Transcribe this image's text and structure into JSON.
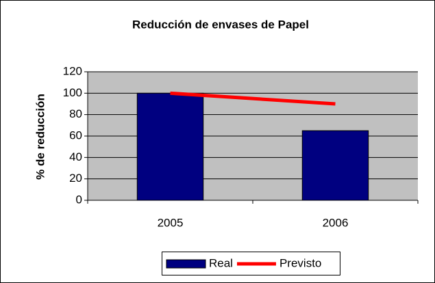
{
  "chart_data": {
    "type": "bar",
    "title": "Reducción de envases de Papel",
    "y_label": "% de reducción",
    "categories": [
      "2005",
      "2006"
    ],
    "series": [
      {
        "name": "Real",
        "type": "bar",
        "color": "#000080",
        "values": [
          100,
          65
        ]
      },
      {
        "name": "Previsto",
        "type": "line",
        "color": "#ff0000",
        "values": [
          100,
          90
        ]
      }
    ],
    "ylim": [
      0,
      120
    ],
    "yticks": [
      0,
      20,
      40,
      60,
      80,
      100,
      120
    ],
    "grid": true,
    "legend": "bottom"
  }
}
